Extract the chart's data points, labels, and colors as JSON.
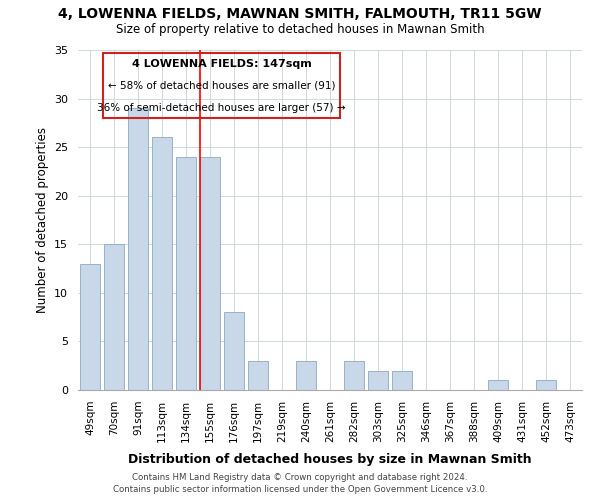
{
  "title": "4, LOWENNA FIELDS, MAWNAN SMITH, FALMOUTH, TR11 5GW",
  "subtitle": "Size of property relative to detached houses in Mawnan Smith",
  "xlabel": "Distribution of detached houses by size in Mawnan Smith",
  "ylabel": "Number of detached properties",
  "bar_labels": [
    "49sqm",
    "70sqm",
    "91sqm",
    "113sqm",
    "134sqm",
    "155sqm",
    "176sqm",
    "197sqm",
    "219sqm",
    "240sqm",
    "261sqm",
    "282sqm",
    "303sqm",
    "325sqm",
    "346sqm",
    "367sqm",
    "388sqm",
    "409sqm",
    "431sqm",
    "452sqm",
    "473sqm"
  ],
  "bar_values": [
    13,
    15,
    29,
    26,
    24,
    24,
    8,
    3,
    0,
    3,
    0,
    3,
    2,
    2,
    0,
    0,
    0,
    1,
    0,
    1,
    0
  ],
  "bar_color": "#c8d8e8",
  "bar_edge_color": "#8aaabf",
  "red_line_index": 5,
  "ylim": [
    0,
    35
  ],
  "yticks": [
    0,
    5,
    10,
    15,
    20,
    25,
    30,
    35
  ],
  "annotation_title": "4 LOWENNA FIELDS: 147sqm",
  "annotation_line1": "← 58% of detached houses are smaller (91)",
  "annotation_line2": "36% of semi-detached houses are larger (57) →",
  "footer_line1": "Contains HM Land Registry data © Crown copyright and database right 2024.",
  "footer_line2": "Contains public sector information licensed under the Open Government Licence v3.0.",
  "background_color": "#ffffff",
  "grid_color": "#d0d8e0"
}
